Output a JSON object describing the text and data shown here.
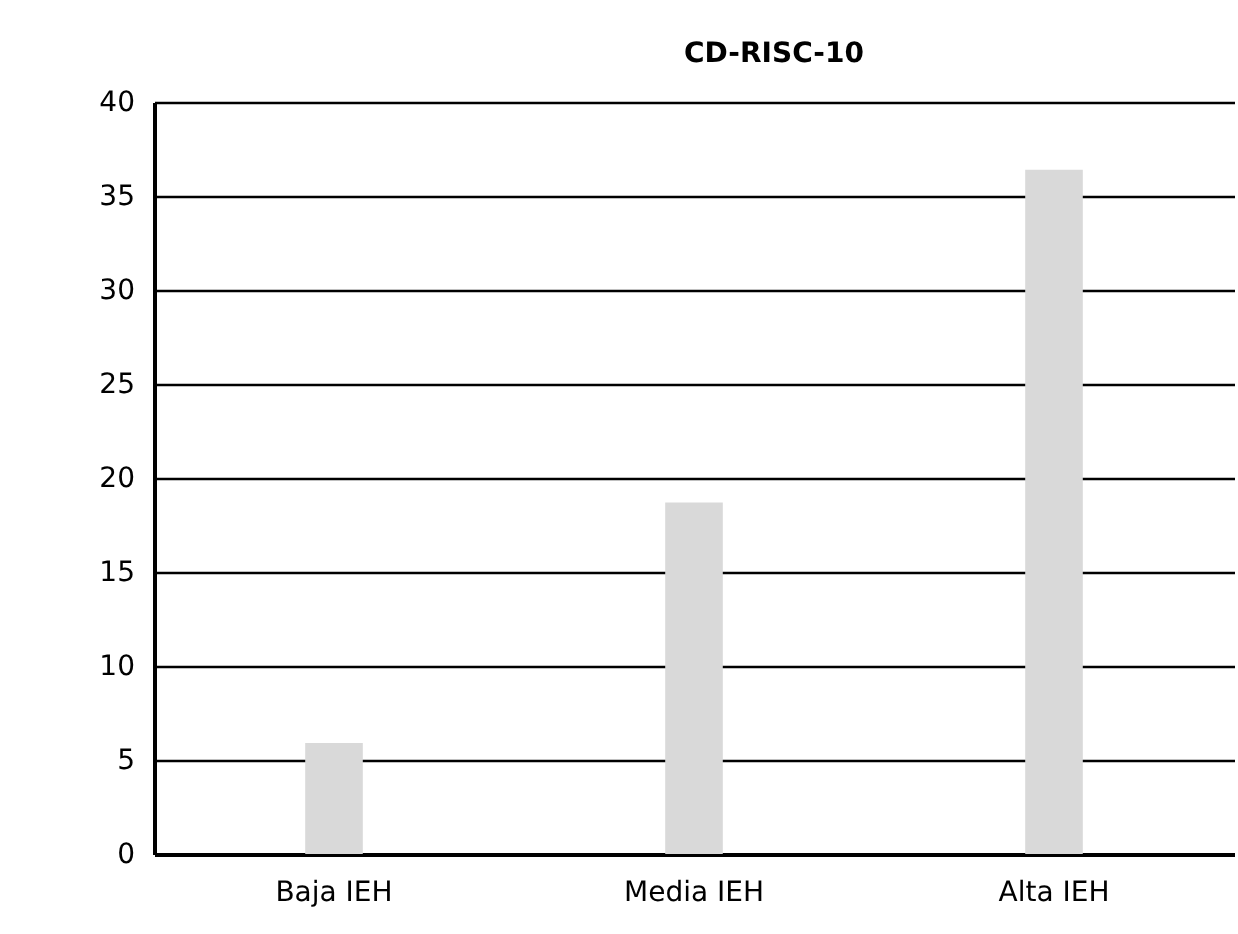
{
  "chart_data": {
    "type": "bar",
    "title": "CD-RISC-10",
    "categories": [
      "Baja IEH",
      "Media IEH",
      "Alta IEH"
    ],
    "values": [
      5.9,
      18.7,
      36.4
    ],
    "color": "#d9d9d9",
    "ylim": [
      0,
      40
    ],
    "yticks": [
      0,
      5,
      10,
      15,
      20,
      25,
      30,
      35,
      40
    ],
    "grid": "y"
  }
}
